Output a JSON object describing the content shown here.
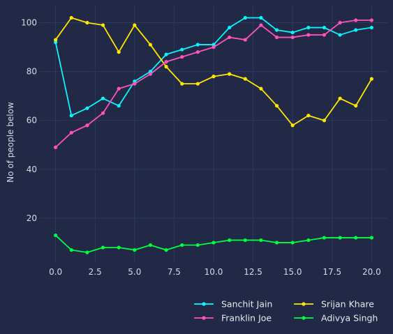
{
  "chart_data": {
    "type": "line",
    "title": "",
    "xlabel": "",
    "ylabel": "No of people below",
    "xlim": [
      -1,
      21
    ],
    "ylim": [
      2,
      107
    ],
    "xticks": [
      0.0,
      2.5,
      5.0,
      7.5,
      10.0,
      12.5,
      15.0,
      17.5,
      20.0
    ],
    "xtick_labels": [
      "0.0",
      "2.5",
      "5.0",
      "7.5",
      "10.0",
      "12.5",
      "15.0",
      "17.5",
      "20.0"
    ],
    "yticks": [
      20,
      40,
      60,
      80,
      100
    ],
    "ytick_labels": [
      "20",
      "40",
      "60",
      "80",
      "100"
    ],
    "grid": true,
    "legend_position": "bottom-right",
    "background": "#212946",
    "x": [
      0,
      1,
      2,
      3,
      4,
      5,
      6,
      7,
      8,
      9,
      10,
      11,
      12,
      13,
      14,
      15,
      16,
      17,
      18,
      19,
      20
    ],
    "series": [
      {
        "name": "Sanchit Jain",
        "color": "#08F7FE",
        "values": [
          92,
          62,
          65,
          69,
          66,
          76,
          80,
          87,
          89,
          91,
          91,
          98,
          102,
          102,
          97,
          96,
          98,
          98,
          95,
          97,
          98
        ]
      },
      {
        "name": "Srijan Khare",
        "color": "#FFE700",
        "values": [
          93,
          102,
          100,
          99,
          88,
          99,
          91,
          82,
          75,
          75,
          78,
          79,
          77,
          73,
          66,
          58,
          62,
          60,
          69,
          66,
          77
        ]
      },
      {
        "name": "Franklin Joe",
        "color": "#FE53BB",
        "values": [
          49,
          55,
          58,
          63,
          73,
          75,
          79,
          84,
          86,
          88,
          90,
          94,
          93,
          99,
          94,
          94,
          95,
          95,
          100,
          101,
          101
        ]
      },
      {
        "name": "Adivya Singh",
        "color": "#00ff41",
        "values": [
          13,
          7,
          6,
          8,
          8,
          7,
          9,
          7,
          9,
          9,
          10,
          11,
          11,
          11,
          10,
          10,
          11,
          12,
          12,
          12,
          12
        ]
      }
    ]
  }
}
